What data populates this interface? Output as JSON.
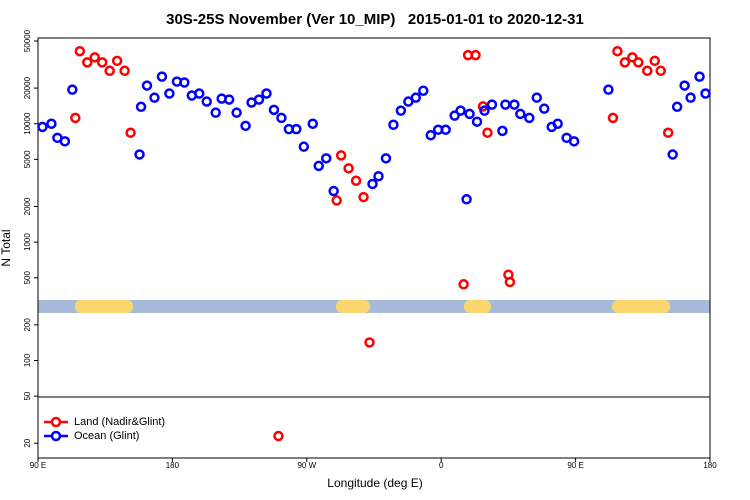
{
  "chart_data": {
    "type": "scatter",
    "title": "30S-25S November (Ver 10_MIP)   2015-01-01 to 2020-12-31",
    "x_label": "Longitude (deg E)",
    "y_label": "N Total",
    "log_y": true,
    "legend": "bottom left",
    "xlim": [
      90,
      540
    ],
    "ylim": [
      15,
      53000
    ],
    "xticks": [
      {
        "value": 90,
        "label": "90 E"
      },
      {
        "value": 180,
        "label": "180"
      },
      {
        "value": 270,
        "label": "90 W"
      },
      {
        "value": 360,
        "label": "0"
      },
      {
        "value": 450,
        "label": "90 E"
      },
      {
        "value": 540,
        "label": "180"
      }
    ],
    "yticks": [
      20,
      50,
      100,
      200,
      500,
      1000,
      2000,
      5000,
      10000,
      20000,
      50000
    ],
    "series": [
      {
        "name": "Land (Nadir&Glint)",
        "color": "#ff0000",
        "x": [
          115,
          118,
          123,
          128,
          133,
          138,
          143,
          148,
          152,
          251,
          290,
          293,
          298,
          303,
          308,
          312,
          375,
          378,
          383,
          388,
          391,
          405,
          406,
          475,
          478,
          483,
          488,
          492,
          498,
          503,
          507,
          512
        ],
        "values": [
          11200,
          41000,
          33000,
          36400,
          33000,
          28000,
          34000,
          28000,
          8400,
          23,
          2250,
          5400,
          4200,
          3300,
          2400,
          142,
          440,
          38000,
          38000,
          14000,
          8400,
          530,
          460,
          11200,
          41000,
          33000,
          36400,
          33000,
          28000,
          34000,
          28000,
          8400
        ]
      },
      {
        "name": "Ocean (Glint)",
        "color": "#0000ff",
        "x": [
          93,
          99,
          103,
          108,
          113,
          158,
          159,
          163,
          168,
          173,
          178,
          183,
          188,
          193,
          198,
          203,
          209,
          213,
          218,
          223,
          229,
          233,
          238,
          243,
          248,
          253,
          258,
          263,
          268,
          274,
          278,
          283,
          288,
          314,
          318,
          323,
          328,
          333,
          338,
          343,
          348,
          353,
          358,
          363,
          369,
          373,
          377,
          379,
          384,
          389,
          394,
          401,
          403,
          409,
          413,
          419,
          424,
          429,
          434,
          438,
          444,
          449,
          472,
          515,
          518,
          523,
          527,
          533,
          537
        ],
        "values": [
          9400,
          10000,
          7600,
          7100,
          19400,
          5500,
          13900,
          21000,
          16600,
          25000,
          18000,
          22700,
          22300,
          17300,
          18000,
          15400,
          12400,
          16300,
          16000,
          12400,
          9600,
          15100,
          16000,
          18000,
          13100,
          11200,
          9000,
          9000,
          6400,
          10000,
          4400,
          5100,
          2700,
          3100,
          3600,
          5100,
          9800,
          12900,
          15400,
          16600,
          19000,
          8000,
          8900,
          8900,
          11700,
          12900,
          2300,
          12100,
          10400,
          12900,
          14500,
          8700,
          14500,
          14500,
          12100,
          11200,
          16600,
          13400,
          9400,
          10000,
          7600,
          7100,
          19400,
          5500,
          13900,
          21000,
          16600,
          25000,
          18000
        ]
      }
    ]
  }
}
